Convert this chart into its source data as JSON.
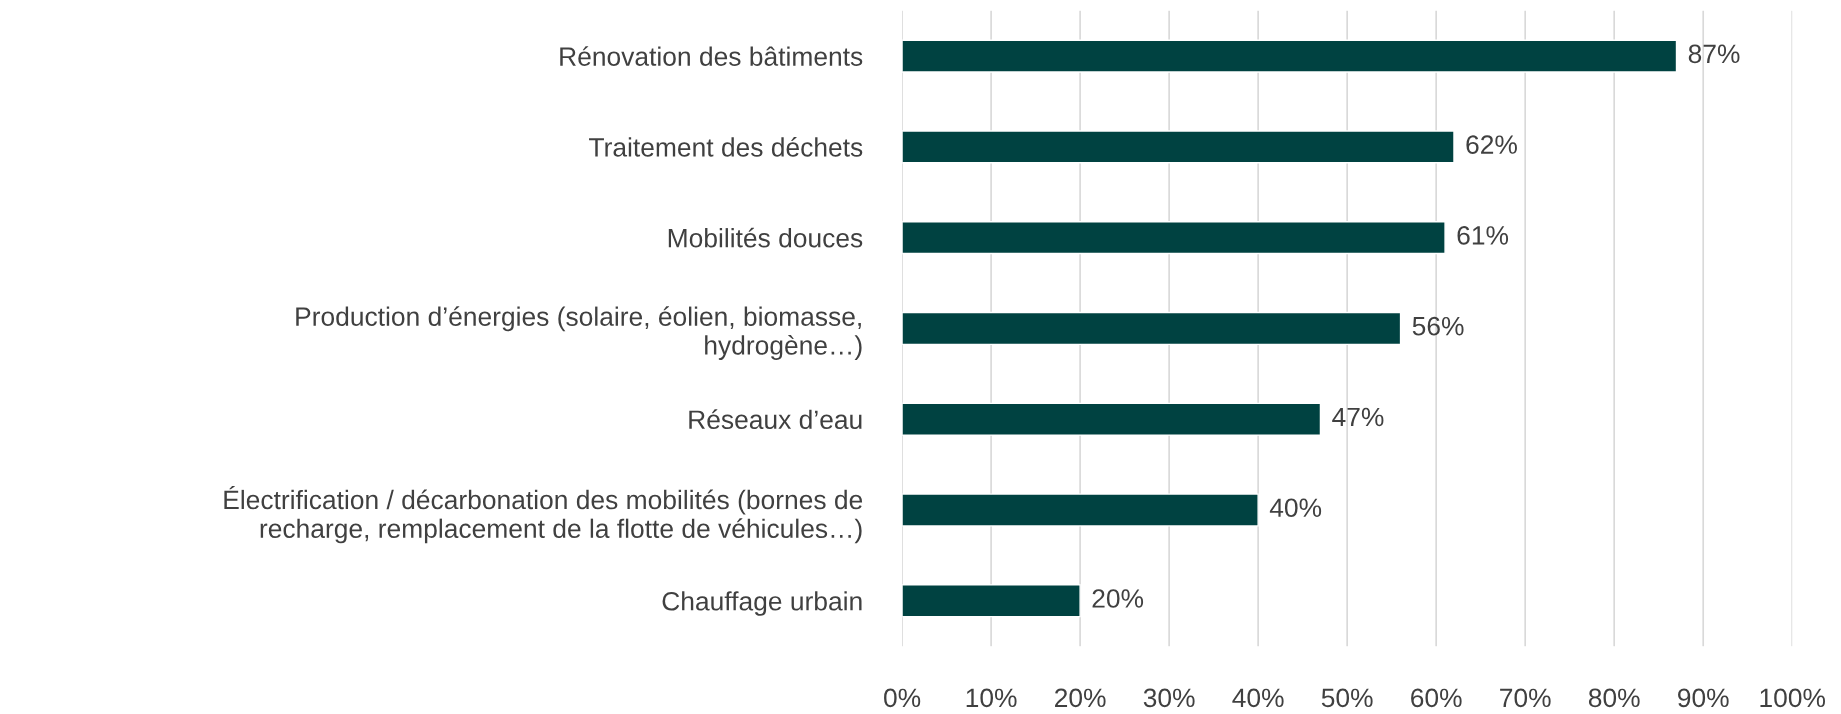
{
  "chart_data": {
    "type": "bar",
    "orientation": "horizontal",
    "categories": [
      "Rénovation des bâtiments",
      "Traitement des déchets",
      "Mobilités douces",
      "Production d’énergies (solaire, éolien, biomasse,\nhydrogène…)",
      "Réseaux d’eau",
      "Électrification / décarbonation des mobilités (bornes de\nrecharge, remplacement de la flotte de véhicules…)",
      "Chauffage urbain"
    ],
    "values": [
      87,
      62,
      61,
      56,
      47,
      40,
      20
    ],
    "value_labels": [
      "87%",
      "62%",
      "61%",
      "56%",
      "47%",
      "40%",
      "20%"
    ],
    "color": "#004241",
    "xlim": [
      0,
      100
    ],
    "xticks": [
      {
        "value": 0,
        "label": "0%"
      },
      {
        "value": 10,
        "label": "10%"
      },
      {
        "value": 20,
        "label": "20%"
      },
      {
        "value": 30,
        "label": "30%"
      },
      {
        "value": 40,
        "label": "40%"
      },
      {
        "value": 50,
        "label": "50%"
      },
      {
        "value": 60,
        "label": "60%"
      },
      {
        "value": 70,
        "label": "70%"
      },
      {
        "value": 80,
        "label": "80%"
      },
      {
        "value": 90,
        "label": "90%"
      },
      {
        "value": 100,
        "label": "100%"
      }
    ],
    "grid": "x"
  }
}
